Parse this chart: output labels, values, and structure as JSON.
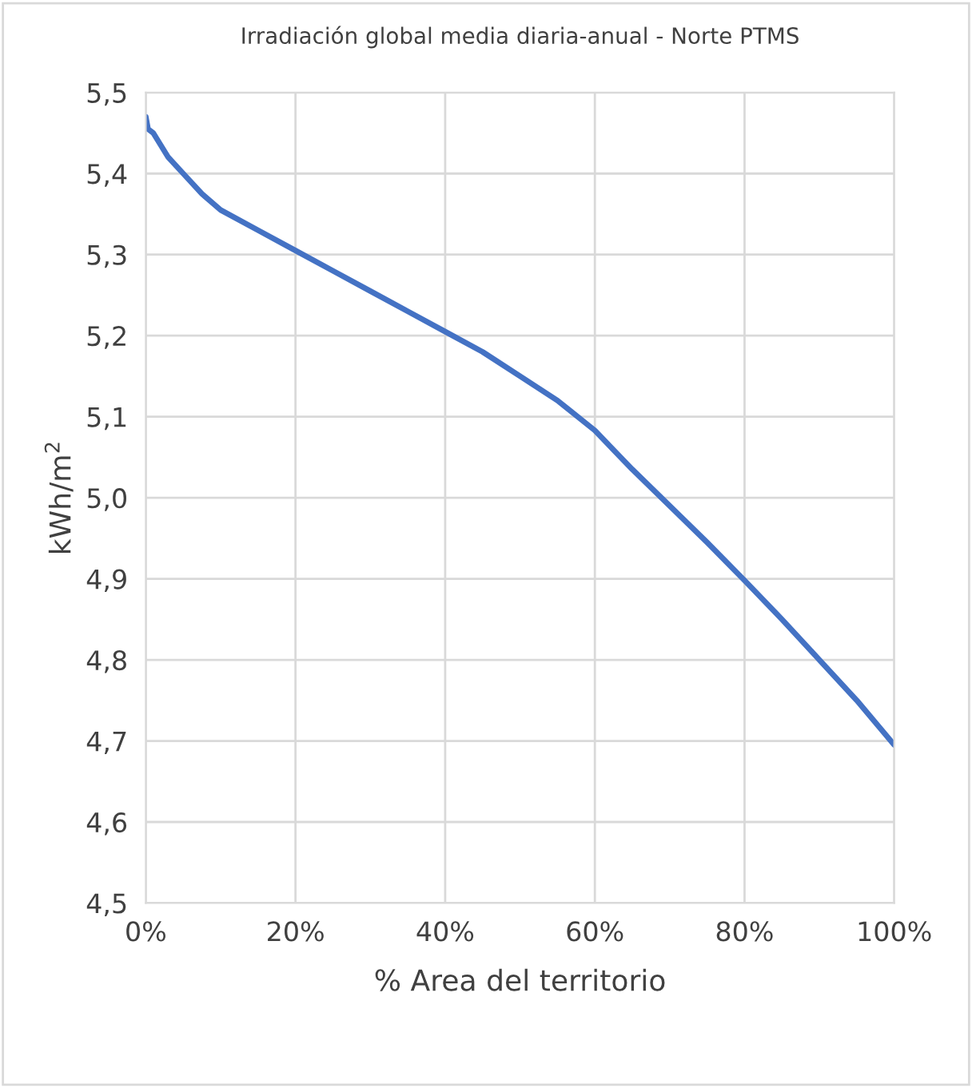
{
  "chart_data": {
    "type": "line",
    "title": "Irradiación global media diaria-anual - Norte PTMS",
    "xlabel": "% Area del territorio",
    "ylabel": "kWh/m$^{2}$",
    "x": [
      0,
      0.3,
      1,
      2,
      3,
      5,
      7.5,
      10,
      15,
      20,
      25,
      30,
      35,
      40,
      45,
      50,
      55,
      60,
      65,
      70,
      75,
      80,
      85,
      90,
      95,
      100
    ],
    "series": [
      {
        "color": "#4472c4",
        "values": [
          5.47,
          5.455,
          5.45,
          5.435,
          5.42,
          5.4,
          5.375,
          5.355,
          5.33,
          5.305,
          5.28,
          5.255,
          5.23,
          5.205,
          5.18,
          5.15,
          5.12,
          5.083,
          5.035,
          4.99,
          4.945,
          4.898,
          4.85,
          4.8,
          4.75,
          4.695
        ]
      }
    ],
    "xlim": [
      0,
      100
    ],
    "xticks": [
      {
        "value": 0,
        "label": "0%"
      },
      {
        "value": 20,
        "label": "20%"
      },
      {
        "value": 40,
        "label": "40%"
      },
      {
        "value": 60,
        "label": "60%"
      },
      {
        "value": 80,
        "label": "80%"
      },
      {
        "value": 100,
        "label": "100%"
      }
    ],
    "ylim": [
      4.5,
      5.5
    ],
    "yticks": [
      {
        "value": 4.5,
        "label": "4,5"
      },
      {
        "value": 4.6,
        "label": "4,6"
      },
      {
        "value": 4.7,
        "label": "4,7"
      },
      {
        "value": 4.8,
        "label": "4,8"
      },
      {
        "value": 4.9,
        "label": "4,9"
      },
      {
        "value": 5.0,
        "label": "5,0"
      },
      {
        "value": 5.1,
        "label": "5,1"
      },
      {
        "value": 5.2,
        "label": "5,2"
      },
      {
        "value": 5.3,
        "label": "5,3"
      },
      {
        "value": 5.4,
        "label": "5,4"
      },
      {
        "value": 5.5,
        "label": "5,5"
      }
    ],
    "grid": true,
    "legend": false,
    "marker": "none",
    "line_style": "solid"
  }
}
